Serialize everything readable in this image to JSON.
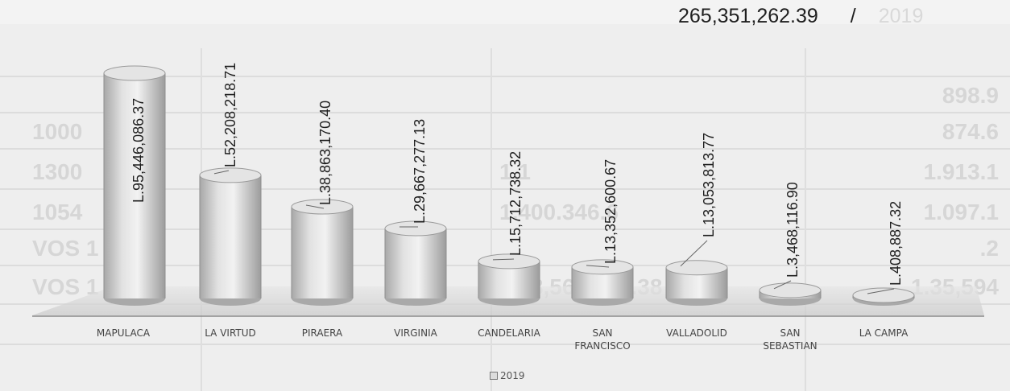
{
  "header": {
    "total": "265,351,262.39",
    "separator": "/",
    "year": "2019"
  },
  "legend": {
    "label": "2019"
  },
  "chart_data": {
    "type": "bar",
    "title": "",
    "xlabel": "",
    "ylabel": "",
    "ylim": [
      0,
      100000000
    ],
    "grid": false,
    "legend_position": "bottom",
    "categories": [
      "MAPULACA",
      "LA VIRTUD",
      "PIRAERA",
      "VIRGINIA",
      "CANDELARIA",
      "SAN FRANCISCO",
      "VALLADOLID",
      "SAN SEBASTIAN",
      "LA CAMPA"
    ],
    "category_lines": [
      [
        "MAPULACA"
      ],
      [
        "LA VIRTUD"
      ],
      [
        "PIRAERA"
      ],
      [
        "VIRGINIA"
      ],
      [
        "CANDELARIA"
      ],
      [
        "SAN",
        "FRANCISCO"
      ],
      [
        "VALLADOLID"
      ],
      [
        "SAN",
        "SEBASTIAN"
      ],
      [
        "LA CAMPA"
      ]
    ],
    "series": [
      {
        "name": "2019",
        "values": [
          95446086.37,
          52208218.71,
          38863170.4,
          29667277.13,
          15712738.32,
          13352600.67,
          13053813.77,
          3468116.9,
          408887.32
        ]
      }
    ],
    "data_labels": [
      "L.95,446,086.37",
      "L.52,208,218.71",
      "L.38,863,170.40",
      "L.29,667,277.13",
      "L.15,712,738.32",
      "L.13,352,600.67",
      "L.13,053,813.77",
      "L.3,468,116.90",
      "L.408,887.32"
    ]
  },
  "background_table": {
    "rows": [
      [
        "",
        "",
        "898.9"
      ],
      [
        "1000",
        "",
        "874.6"
      ],
      [
        "1300",
        "1.1",
        "1.913.1"
      ],
      [
        "1054",
        "1.400.346.6",
        "1.097.1"
      ],
      [
        "VOS 1",
        "",
        ".2"
      ],
      [
        "VOS 1",
        "1.18,569,529.38",
        "1.35,594"
      ]
    ]
  }
}
